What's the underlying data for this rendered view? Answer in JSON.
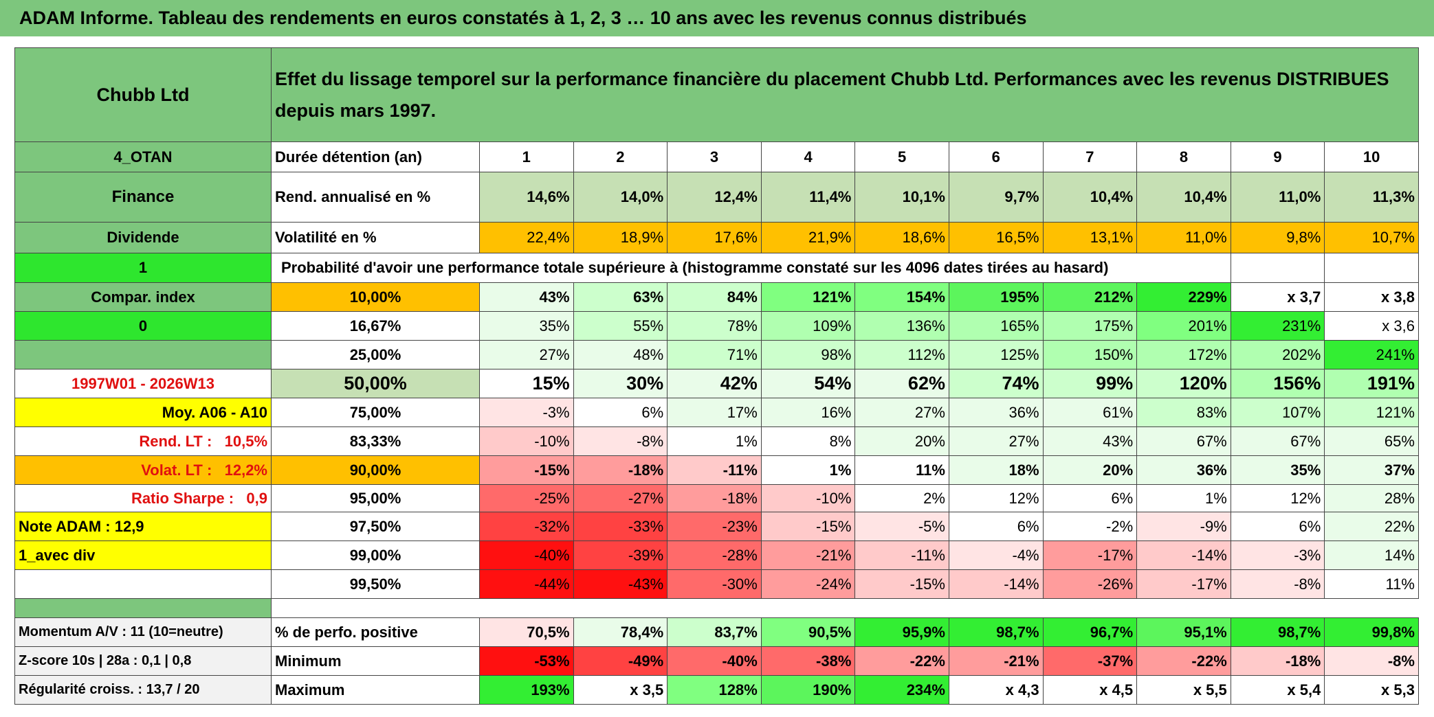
{
  "title": "ADAM Informe. Tableau des rendements en euros constatés à 1, 2, 3 … 10 ans avec les revenus connus distribués",
  "header": {
    "company": "Chubb Ltd",
    "description": "Effet du lissage temporel sur la performance financière du placement Chubb Ltd. Performances avec les revenus DISTRIBUES depuis mars 1997."
  },
  "rows": [
    {
      "side": "4_OTAN",
      "label": "Durée détention (an)",
      "values": [
        1,
        2,
        3,
        4,
        5,
        6,
        7,
        8,
        9,
        10
      ]
    },
    {
      "side": "Finance",
      "label": "Rend. annualisé en %",
      "values": [
        "14,6%",
        "14,0%",
        "12,4%",
        "11,4%",
        "10,1%",
        "9,7%",
        "10,4%",
        "10,4%",
        "11,0%",
        "11,3%"
      ]
    },
    {
      "side": "Dividende",
      "label": "Volatilité en %",
      "values": [
        "22,4%",
        "18,9%",
        "17,6%",
        "21,9%",
        "18,6%",
        "16,5%",
        "13,1%",
        "11,0%",
        "9,8%",
        "10,7%"
      ]
    },
    {
      "side": "1",
      "label": "Probabilité d'avoir une performance totale supérieure à (histogramme constaté sur les 4096 dates tirées au hasard)"
    },
    {
      "side": "Compar. index",
      "label": "10,00%",
      "values": [
        "43%",
        "63%",
        "84%",
        "121%",
        "154%",
        "195%",
        "212%",
        "229%",
        "x 3,7",
        "x 3,8"
      ]
    },
    {
      "side": "0",
      "label": "16,67%",
      "values": [
        "35%",
        "55%",
        "78%",
        "109%",
        "136%",
        "165%",
        "175%",
        "201%",
        "231%",
        "x 3,6"
      ]
    },
    {
      "label": "25,00%",
      "values": [
        "27%",
        "48%",
        "71%",
        "98%",
        "112%",
        "125%",
        "150%",
        "172%",
        "202%",
        "241%"
      ]
    },
    {
      "side": "1997W01 - 2026W13",
      "label": "50,00%",
      "values": [
        "15%",
        "30%",
        "42%",
        "54%",
        "62%",
        "74%",
        "99%",
        "120%",
        "156%",
        "191%"
      ]
    },
    {
      "side": "Moy. A06 - A10",
      "label": "75,00%",
      "values": [
        "-3%",
        "6%",
        "17%",
        "16%",
        "27%",
        "36%",
        "61%",
        "83%",
        "107%",
        "121%"
      ]
    },
    {
      "side": "Rend. LT :   10,5%",
      "label": "83,33%",
      "values": [
        "-10%",
        "-8%",
        "1%",
        "8%",
        "20%",
        "27%",
        "43%",
        "67%",
        "67%",
        "65%"
      ]
    },
    {
      "side": "Volat. LT :   12,2%",
      "label": "90,00%",
      "values": [
        "-15%",
        "-18%",
        "-11%",
        "1%",
        "11%",
        "18%",
        "20%",
        "36%",
        "35%",
        "37%"
      ]
    },
    {
      "side": "Ratio Sharpe :   0,9",
      "label": "95,00%",
      "values": [
        "-25%",
        "-27%",
        "-18%",
        "-10%",
        "2%",
        "12%",
        "6%",
        "1%",
        "12%",
        "28%"
      ]
    },
    {
      "side": "Note ADAM : 12,9",
      "label": "97,50%",
      "values": [
        "-32%",
        "-33%",
        "-23%",
        "-15%",
        "-5%",
        "6%",
        "-2%",
        "-9%",
        "6%",
        "22%"
      ]
    },
    {
      "side": "1_avec div",
      "label": "99,00%",
      "values": [
        "-40%",
        "-39%",
        "-28%",
        "-21%",
        "-11%",
        "-4%",
        "-17%",
        "-14%",
        "-3%",
        "14%"
      ]
    },
    {
      "label": "99,50%",
      "values": [
        "-44%",
        "-43%",
        "-30%",
        "-24%",
        "-15%",
        "-14%",
        "-26%",
        "-17%",
        "-8%",
        "11%"
      ]
    }
  ],
  "footer": [
    {
      "side": "Momentum A/V : 11 (10=neutre)",
      "label": "% de perfo. positive",
      "values": [
        "70,5%",
        "78,4%",
        "83,7%",
        "90,5%",
        "95,9%",
        "98,7%",
        "96,7%",
        "95,1%",
        "98,7%",
        "99,8%"
      ]
    },
    {
      "side": "Z-score 10s | 28a : 0,1 | 0,8",
      "label": "Minimum",
      "values": [
        "-53%",
        "-49%",
        "-40%",
        "-38%",
        "-22%",
        "-21%",
        "-37%",
        "-22%",
        "-18%",
        "-8%"
      ]
    },
    {
      "side": "Régularité croiss. : 13,7 / 20",
      "label": "Maximum",
      "values": [
        "193%",
        "x 3,5",
        "128%",
        "190%",
        "234%",
        "x 4,3",
        "x 4,5",
        "x 5,5",
        "x 5,4",
        "x 5,3"
      ]
    }
  ]
}
